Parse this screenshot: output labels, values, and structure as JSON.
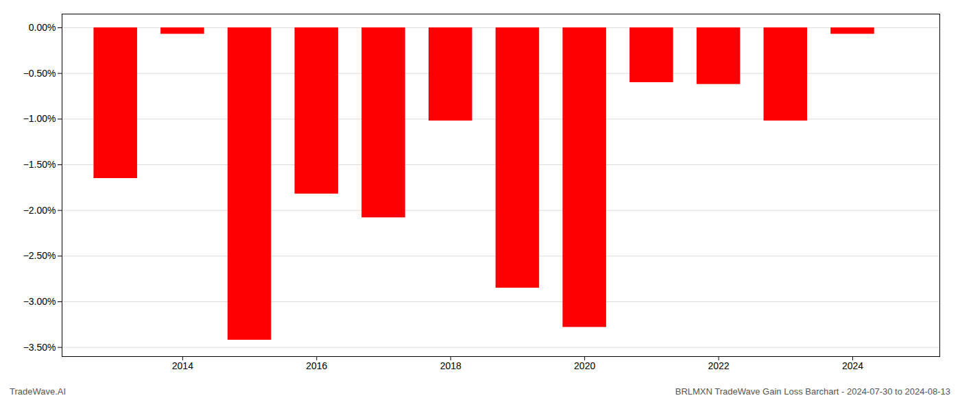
{
  "chart_data": {
    "type": "bar",
    "x": [
      2013,
      2014,
      2015,
      2016,
      2017,
      2018,
      2019,
      2020,
      2021,
      2022,
      2023,
      2024
    ],
    "values": [
      -1.65,
      -0.07,
      -3.42,
      -1.82,
      -2.08,
      -1.02,
      -2.85,
      -3.28,
      -0.6,
      -0.62,
      -1.02,
      -0.07
    ],
    "color": "#ff0000",
    "xlim": [
      2012.2,
      2025.3
    ],
    "xticks": [
      2014,
      2016,
      2018,
      2020,
      2022,
      2024
    ],
    "ylim": [
      -3.6,
      0.15
    ],
    "yticks": [
      {
        "value": 0.0,
        "label": "0.00%"
      },
      {
        "value": -0.5,
        "label": "−0.50%"
      },
      {
        "value": -1.0,
        "label": "−1.00%"
      },
      {
        "value": -1.5,
        "label": "−1.50%"
      },
      {
        "value": -2.0,
        "label": "−2.00%"
      },
      {
        "value": -2.5,
        "label": "−2.50%"
      },
      {
        "value": -3.0,
        "label": "−3.00%"
      },
      {
        "value": -3.5,
        "label": "−3.50%"
      }
    ],
    "grid": true,
    "annotations": [
      "TradeWave.AI",
      "BRLMXN TradeWave Gain Loss Barchart - 2024-07-30 to 2024-08-13"
    ]
  }
}
